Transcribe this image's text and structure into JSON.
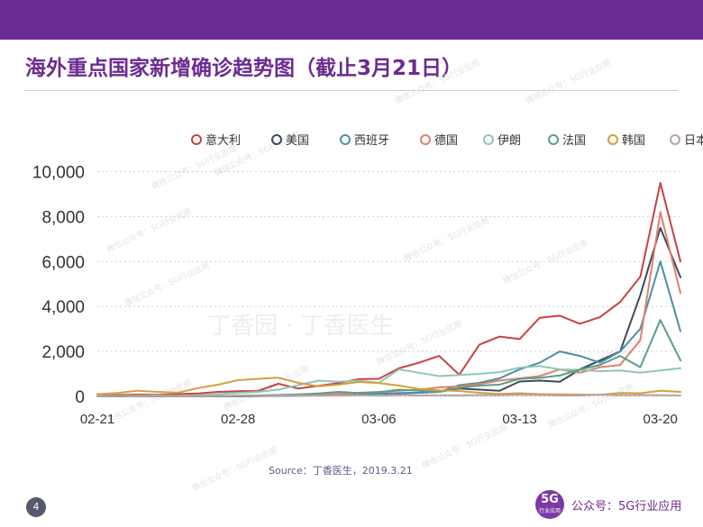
{
  "header": {
    "title": "海外重点国家新增确诊趋势图（截止3月21日）",
    "brand_color": "#6b2c91"
  },
  "footer": {
    "source": "Source：丁香医生，2019.3.21",
    "page_number": "4",
    "logo_main": "5G",
    "logo_sub": "行业应用",
    "account": "公众号：5G行业应用"
  },
  "watermark": {
    "main": "丁香园 · 丁香医生",
    "small": "微信公众号：5G行业应用"
  },
  "chart_data": {
    "type": "line",
    "x": [
      "02-21",
      "02-22",
      "02-23",
      "02-24",
      "02-25",
      "02-26",
      "02-27",
      "02-28",
      "02-29",
      "03-01",
      "03-02",
      "03-03",
      "03-04",
      "03-05",
      "03-06",
      "03-07",
      "03-08",
      "03-09",
      "03-10",
      "03-11",
      "03-12",
      "03-13",
      "03-14",
      "03-15",
      "03-16",
      "03-17",
      "03-18",
      "03-19",
      "03-20",
      "03-21"
    ],
    "x_ticks": [
      "02-21",
      "02-28",
      "03-06",
      "03-13",
      "03-20"
    ],
    "y_ticks": [
      "0",
      "2,000",
      "4,000",
      "6,000",
      "8,000",
      "10,000"
    ],
    "ylim": [
      0,
      10500
    ],
    "grid": "horizontal-dotted",
    "legend_position": "top",
    "series": [
      {
        "name": "意大利",
        "color": "#c94242",
        "values": [
          20,
          60,
          80,
          70,
          100,
          130,
          200,
          230,
          240,
          560,
          350,
          470,
          590,
          770,
          780,
          1250,
          1500,
          1800,
          960,
          2300,
          2660,
          2550,
          3500,
          3590,
          3230,
          3530,
          4200,
          5320,
          9500,
          6000
        ]
      },
      {
        "name": "美国",
        "color": "#3d4a5c",
        "values": [
          0,
          0,
          0,
          0,
          0,
          0,
          0,
          2,
          10,
          20,
          30,
          40,
          60,
          80,
          120,
          130,
          160,
          200,
          350,
          300,
          250,
          660,
          700,
          650,
          1200,
          1600,
          2000,
          4500,
          7500,
          5300
        ]
      },
      {
        "name": "西班牙",
        "color": "#4d8fa8",
        "values": [
          0,
          0,
          0,
          0,
          0,
          0,
          1,
          10,
          20,
          30,
          40,
          50,
          60,
          90,
          120,
          150,
          160,
          200,
          500,
          600,
          800,
          1200,
          1500,
          2000,
          1800,
          1500,
          2000,
          3000,
          6000,
          2900
        ]
      },
      {
        "name": "德国",
        "color": "#e0806a",
        "values": [
          0,
          0,
          0,
          0,
          0,
          2,
          10,
          30,
          40,
          60,
          80,
          100,
          120,
          160,
          200,
          250,
          300,
          400,
          450,
          550,
          700,
          800,
          900,
          1200,
          1050,
          1300,
          1400,
          2500,
          8200,
          4600
        ]
      },
      {
        "name": "伊朗",
        "color": "#8cc7b8",
        "values": [
          10,
          20,
          30,
          40,
          30,
          50,
          100,
          150,
          200,
          300,
          500,
          700,
          650,
          700,
          600,
          1200,
          1050,
          900,
          950,
          1000,
          1080,
          1280,
          1350,
          1200,
          1180,
          1120,
          1150,
          1050,
          1150,
          1250
        ]
      },
      {
        "name": "法国",
        "color": "#5a9e8a",
        "values": [
          0,
          0,
          0,
          0,
          0,
          5,
          10,
          30,
          40,
          60,
          90,
          130,
          200,
          150,
          180,
          300,
          250,
          200,
          380,
          480,
          520,
          780,
          820,
          930,
          1200,
          1400,
          1800,
          1300,
          3400,
          1600
        ]
      },
      {
        "name": "韩国",
        "color": "#d4a03e",
        "values": [
          100,
          150,
          250,
          200,
          160,
          370,
          520,
          720,
          780,
          830,
          600,
          450,
          520,
          640,
          590,
          480,
          330,
          270,
          240,
          160,
          110,
          140,
          100,
          90,
          80,
          70,
          150,
          140,
          250,
          200
        ]
      },
      {
        "name": "日本",
        "color": "#b8a2a8",
        "values": [
          10,
          20,
          15,
          20,
          10,
          20,
          30,
          25,
          20,
          30,
          40,
          30,
          40,
          50,
          30,
          60,
          40,
          50,
          40,
          60,
          50,
          70,
          60,
          40,
          40,
          80,
          50,
          60,
          50,
          40
        ]
      }
    ]
  }
}
